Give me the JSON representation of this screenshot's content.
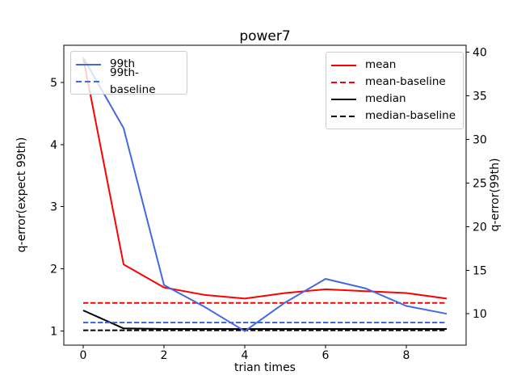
{
  "figure": {
    "title": "power7",
    "xlabel": "trian times",
    "ylabel_left": "q-error(expect 99th)",
    "ylabel_right": "q-error(99th)",
    "background_color": "#ffffff",
    "spine_color": "#000000",
    "legend_border_color": "#cccccc"
  },
  "chart_data": {
    "type": "line",
    "title": "power7",
    "xlabel": "trian times",
    "ylabel_left": "q-error(expect 99th)",
    "ylabel_right": "q-error(99th)",
    "grid": false,
    "x": [
      0,
      1,
      2,
      3,
      4,
      5,
      6,
      7,
      8,
      9
    ],
    "xlim": [
      -0.48,
      9.48
    ],
    "ylim_left": [
      0.77,
      5.6
    ],
    "ylim_right": [
      6.4,
      40.8
    ],
    "xticks": [
      0,
      2,
      4,
      6,
      8
    ],
    "yticks_left": [
      1,
      2,
      3,
      4,
      5
    ],
    "yticks_right": [
      10,
      15,
      20,
      25,
      30,
      35,
      40
    ],
    "legend_left": {
      "position": "upper left",
      "series_indexes": [
        0,
        1
      ]
    },
    "legend_right": {
      "position": "upper right",
      "series_indexes": [
        2,
        3,
        4,
        5
      ]
    },
    "series": [
      {
        "name": "99th",
        "axis": "right",
        "color": "#4169e1",
        "style": "solid",
        "values": [
          39.4,
          31.3,
          13.3,
          10.8,
          8.0,
          11.3,
          14.0,
          12.9,
          10.9,
          10.0
        ]
      },
      {
        "name": "99th-baseline",
        "axis": "right",
        "color": "#4169e1",
        "style": "dashed",
        "values": [
          9.0,
          9.0,
          9.0,
          9.0,
          9.0,
          9.0,
          9.0,
          9.0,
          9.0,
          9.0
        ]
      },
      {
        "name": "mean",
        "axis": "left",
        "color": "#ff0000",
        "style": "solid",
        "values": [
          5.4,
          2.07,
          1.7,
          1.58,
          1.52,
          1.61,
          1.67,
          1.64,
          1.61,
          1.52
        ]
      },
      {
        "name": "mean-baseline",
        "axis": "left",
        "color": "#ff0000",
        "style": "dashed",
        "values": [
          1.45,
          1.45,
          1.45,
          1.45,
          1.45,
          1.45,
          1.45,
          1.45,
          1.45,
          1.45
        ]
      },
      {
        "name": "median",
        "axis": "left",
        "color": "#000000",
        "style": "solid",
        "values": [
          1.33,
          1.04,
          1.03,
          1.03,
          1.03,
          1.03,
          1.03,
          1.03,
          1.03,
          1.03
        ]
      },
      {
        "name": "median-baseline",
        "axis": "left",
        "color": "#000000",
        "style": "dashed",
        "values": [
          1.01,
          1.01,
          1.01,
          1.01,
          1.01,
          1.01,
          1.01,
          1.01,
          1.01,
          1.01
        ]
      }
    ]
  }
}
